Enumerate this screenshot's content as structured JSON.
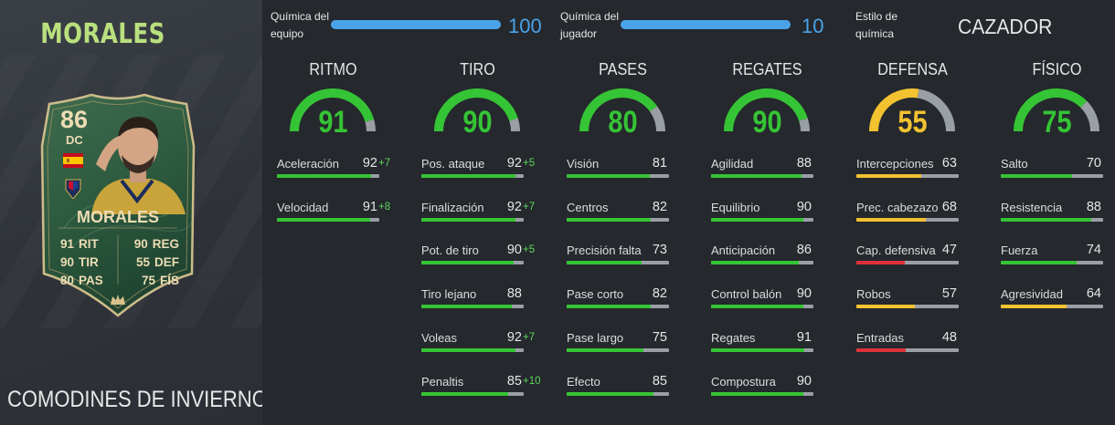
{
  "player": {
    "name": "MORALES",
    "promo": "COMODINES DE INVIERNO"
  },
  "card": {
    "rating": "86",
    "position": "DC",
    "name": "MORALES",
    "stats": [
      {
        "left_value": "91",
        "left_label": "RIT",
        "right_value": "90",
        "right_label": "REG"
      },
      {
        "left_value": "90",
        "left_label": "TIR",
        "right_value": "55",
        "right_label": "DEF"
      },
      {
        "left_value": "80",
        "left_label": "PAS",
        "right_value": "75",
        "right_label": "FÍS"
      }
    ]
  },
  "chemistry": {
    "team": {
      "label_line1": "Química del",
      "label_line2": "equipo",
      "value": "100",
      "fraction": 1.0
    },
    "player": {
      "label_line1": "Química del",
      "label_line2": "jugador",
      "value": "10",
      "fraction": 1.0
    },
    "style": {
      "label_line1": "Estilo de",
      "label_line2": "química",
      "value": "CAZADOR"
    }
  },
  "colors": {
    "green": "#35c435",
    "yellow": "#f2c230",
    "red": "#e0313a",
    "gauge_bg": "#9a9ea5",
    "accent_blue": "#4aa3e8",
    "name_green": "#b9e07d"
  },
  "columns": [
    {
      "title": "RITMO",
      "value": "91",
      "rating": 91,
      "stats": [
        {
          "label": "Aceleración",
          "value": "92",
          "boost": "+7"
        },
        {
          "label": "Velocidad",
          "value": "91",
          "boost": "+8"
        }
      ]
    },
    {
      "title": "TIRO",
      "value": "90",
      "rating": 90,
      "stats": [
        {
          "label": "Pos. ataque",
          "value": "92",
          "boost": "+5"
        },
        {
          "label": "Finalización",
          "value": "92",
          "boost": "+7"
        },
        {
          "label": "Pot. de tiro",
          "value": "90",
          "boost": "+5"
        },
        {
          "label": "Tiro lejano",
          "value": "88",
          "boost": ""
        },
        {
          "label": "Voleas",
          "value": "92",
          "boost": "+7"
        },
        {
          "label": "Penaltis",
          "value": "85",
          "boost": "+10"
        }
      ]
    },
    {
      "title": "PASES",
      "value": "80",
      "rating": 80,
      "stats": [
        {
          "label": "Visión",
          "value": "81",
          "boost": ""
        },
        {
          "label": "Centros",
          "value": "82",
          "boost": ""
        },
        {
          "label": "Precisión falta",
          "value": "73",
          "boost": ""
        },
        {
          "label": "Pase corto",
          "value": "82",
          "boost": ""
        },
        {
          "label": "Pase largo",
          "value": "75",
          "boost": ""
        },
        {
          "label": "Efecto",
          "value": "85",
          "boost": ""
        }
      ]
    },
    {
      "title": "REGATES",
      "value": "90",
      "rating": 90,
      "stats": [
        {
          "label": "Agilidad",
          "value": "88",
          "boost": ""
        },
        {
          "label": "Equilibrio",
          "value": "90",
          "boost": ""
        },
        {
          "label": "Anticipación",
          "value": "86",
          "boost": ""
        },
        {
          "label": "Control balón",
          "value": "90",
          "boost": ""
        },
        {
          "label": "Regates",
          "value": "91",
          "boost": ""
        },
        {
          "label": "Compostura",
          "value": "90",
          "boost": ""
        }
      ]
    },
    {
      "title": "DEFENSA",
      "value": "55",
      "rating": 55,
      "stats": [
        {
          "label": "Intercepciones",
          "value": "63",
          "boost": ""
        },
        {
          "label": "Prec. cabezazo",
          "value": "68",
          "boost": ""
        },
        {
          "label": "Cap. defensiva",
          "value": "47",
          "boost": ""
        },
        {
          "label": "Robos",
          "value": "57",
          "boost": ""
        },
        {
          "label": "Entradas",
          "value": "48",
          "boost": ""
        }
      ]
    },
    {
      "title": "FÍSICO",
      "value": "75",
      "rating": 75,
      "stats": [
        {
          "label": "Salto",
          "value": "70",
          "boost": ""
        },
        {
          "label": "Resistencia",
          "value": "88",
          "boost": ""
        },
        {
          "label": "Fuerza",
          "value": "74",
          "boost": ""
        },
        {
          "label": "Agresividad",
          "value": "64",
          "boost": ""
        }
      ]
    }
  ]
}
